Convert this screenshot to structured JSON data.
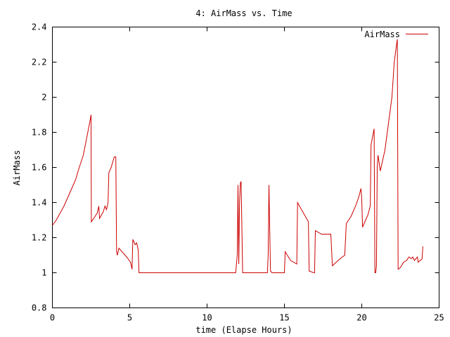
{
  "chart_data": {
    "type": "line",
    "title": "4: AirMass vs. Time",
    "xlabel": "time (Elapse Hours)",
    "ylabel": "AirMass",
    "xlim": [
      0,
      25
    ],
    "ylim": [
      0.8,
      2.4
    ],
    "xticks": [
      0,
      5,
      10,
      15,
      20,
      25
    ],
    "xtick_labels": [
      "0",
      "5",
      "10",
      "15",
      "20",
      "25"
    ],
    "yticks": [
      0.8,
      1,
      1.2,
      1.4,
      1.6,
      1.8,
      2,
      2.2,
      2.4
    ],
    "ytick_labels": [
      "0.8",
      "1",
      "1.2",
      "1.4",
      "1.6",
      "1.8",
      "2",
      "2.2",
      "2.4"
    ],
    "grid": false,
    "legend_position": "top-right",
    "series": [
      {
        "name": "AirMass",
        "color": "#cc0000",
        "points": [
          [
            0,
            1.27
          ],
          [
            0.25,
            1.3
          ],
          [
            0.5,
            1.34
          ],
          [
            0.75,
            1.38
          ],
          [
            1.0,
            1.43
          ],
          [
            1.25,
            1.48
          ],
          [
            1.5,
            1.53
          ],
          [
            1.7,
            1.59
          ],
          [
            2.0,
            1.67
          ],
          [
            2.2,
            1.76
          ],
          [
            2.4,
            1.85
          ],
          [
            2.5,
            1.9
          ],
          [
            2.52,
            1.29
          ],
          [
            2.9,
            1.34
          ],
          [
            3.0,
            1.38
          ],
          [
            3.05,
            1.31
          ],
          [
            3.3,
            1.35
          ],
          [
            3.4,
            1.38
          ],
          [
            3.5,
            1.36
          ],
          [
            3.6,
            1.4
          ],
          [
            3.65,
            1.57
          ],
          [
            3.8,
            1.6
          ],
          [
            4.0,
            1.66
          ],
          [
            4.1,
            1.66
          ],
          [
            4.15,
            1.12
          ],
          [
            4.2,
            1.1
          ],
          [
            4.3,
            1.14
          ],
          [
            4.6,
            1.11
          ],
          [
            4.8,
            1.09
          ],
          [
            5.05,
            1.06
          ],
          [
            5.15,
            1.02
          ],
          [
            5.2,
            1.19
          ],
          [
            5.35,
            1.16
          ],
          [
            5.45,
            1.17
          ],
          [
            5.55,
            1.13
          ],
          [
            5.6,
            1.0
          ],
          [
            11.85,
            1.0
          ],
          [
            11.95,
            1.1
          ],
          [
            12.0,
            1.5
          ],
          [
            12.05,
            1.05
          ],
          [
            12.1,
            1.4
          ],
          [
            12.15,
            1.51
          ],
          [
            12.2,
            1.52
          ],
          [
            12.3,
            1.0
          ],
          [
            13.9,
            1.0
          ],
          [
            13.95,
            1.1
          ],
          [
            14.0,
            1.5
          ],
          [
            14.1,
            1.01
          ],
          [
            14.2,
            1.0
          ],
          [
            15.0,
            1.0
          ],
          [
            15.05,
            1.12
          ],
          [
            15.4,
            1.07
          ],
          [
            15.8,
            1.05
          ],
          [
            15.85,
            1.4
          ],
          [
            16.1,
            1.36
          ],
          [
            16.3,
            1.33
          ],
          [
            16.55,
            1.29
          ],
          [
            16.6,
            1.01
          ],
          [
            16.9,
            1.0
          ],
          [
            16.95,
            1.0
          ],
          [
            17.0,
            1.24
          ],
          [
            17.4,
            1.22
          ],
          [
            17.8,
            1.22
          ],
          [
            18.0,
            1.22
          ],
          [
            18.1,
            1.04
          ],
          [
            18.6,
            1.08
          ],
          [
            18.9,
            1.1
          ],
          [
            19.0,
            1.28
          ],
          [
            19.3,
            1.32
          ],
          [
            19.6,
            1.38
          ],
          [
            19.8,
            1.43
          ],
          [
            19.95,
            1.48
          ],
          [
            20.0,
            1.42
          ],
          [
            20.05,
            1.26
          ],
          [
            20.2,
            1.29
          ],
          [
            20.4,
            1.33
          ],
          [
            20.55,
            1.38
          ],
          [
            20.6,
            1.73
          ],
          [
            20.8,
            1.82
          ],
          [
            20.85,
            1.0
          ],
          [
            20.9,
            1.0
          ],
          [
            20.95,
            1.04
          ],
          [
            21.0,
            1.6
          ],
          [
            21.05,
            1.67
          ],
          [
            21.1,
            1.64
          ],
          [
            21.2,
            1.58
          ],
          [
            21.35,
            1.64
          ],
          [
            21.5,
            1.7
          ],
          [
            21.65,
            1.8
          ],
          [
            21.8,
            1.9
          ],
          [
            21.95,
            2.0
          ],
          [
            22.1,
            2.2
          ],
          [
            22.25,
            2.3
          ],
          [
            22.3,
            2.33
          ],
          [
            22.35,
            1.02
          ],
          [
            22.5,
            1.03
          ],
          [
            22.7,
            1.06
          ],
          [
            22.9,
            1.07
          ],
          [
            23.05,
            1.09
          ],
          [
            23.2,
            1.08
          ],
          [
            23.3,
            1.09
          ],
          [
            23.4,
            1.07
          ],
          [
            23.5,
            1.08
          ],
          [
            23.6,
            1.09
          ],
          [
            23.65,
            1.06
          ],
          [
            23.9,
            1.08
          ],
          [
            23.95,
            1.15
          ]
        ]
      }
    ]
  }
}
